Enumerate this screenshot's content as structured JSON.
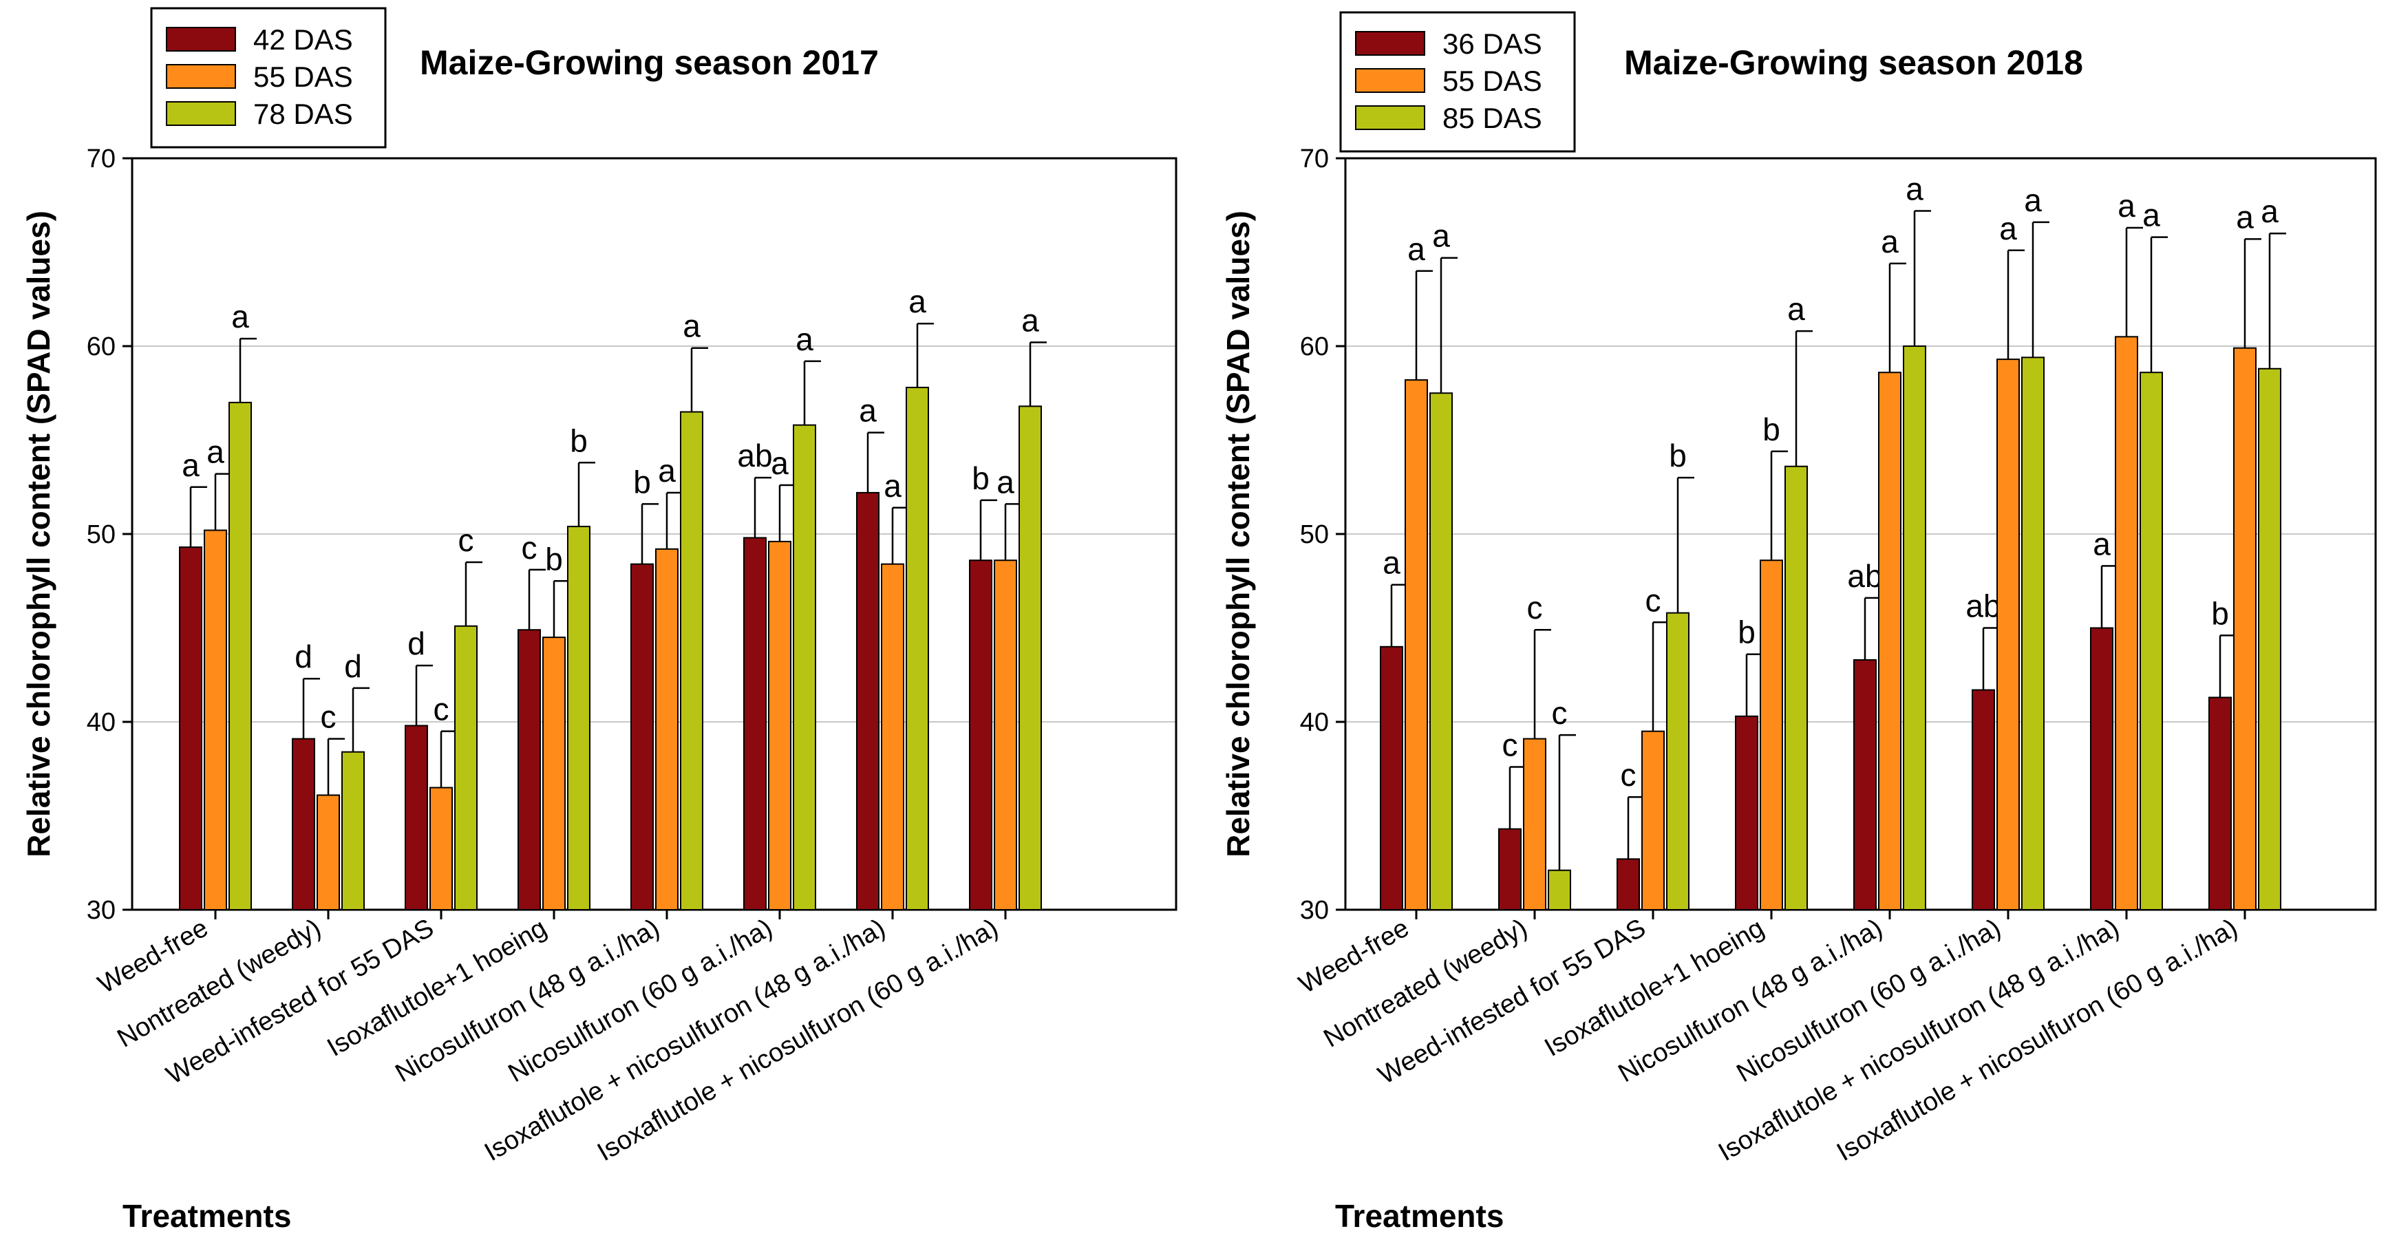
{
  "chart_data": [
    {
      "type": "bar",
      "title": "Maize-Growing season 2017",
      "xlabel": "Treatments",
      "ylabel": "Relative chlorophyll content (SPAD values)",
      "ylim": [
        30,
        70
      ],
      "yticks": [
        "30",
        "40",
        "50",
        "60",
        "70"
      ],
      "grid": true,
      "legend_position": "top-left",
      "categories": [
        "Weed-free",
        "Nontreated (weedy)",
        "Weed-infested for 55 DAS",
        "Isoxaflutole+1 hoeing",
        "Nicosulfuron (48 g a.i./ha)",
        "Nicosulfuron (60 g a.i./ha)",
        "Isoxaflutole + nicosulfuron (48 g a.i./ha)",
        "Isoxaflutole + nicosulfuron (60 g a.i./ha)"
      ],
      "series": [
        {
          "name": "42 DAS",
          "color": "#8b0a0f",
          "values": [
            49.3,
            39.1,
            39.8,
            44.9,
            48.4,
            49.8,
            52.2,
            48.6
          ],
          "errors": [
            3.2,
            3.2,
            3.2,
            3.2,
            3.2,
            3.2,
            3.2,
            3.2
          ],
          "letters": [
            "a",
            "d",
            "d",
            "c",
            "b",
            "ab",
            "a",
            "b"
          ]
        },
        {
          "name": "55 DAS",
          "color": "#ff8c1a",
          "values": [
            50.2,
            36.1,
            36.5,
            44.5,
            49.2,
            49.6,
            48.4,
            48.6
          ],
          "errors": [
            3.0,
            3.0,
            3.0,
            3.0,
            3.0,
            3.0,
            3.0,
            3.0
          ],
          "letters": [
            "a",
            "c",
            "c",
            "b",
            "a",
            "a",
            "a",
            "a"
          ]
        },
        {
          "name": "78 DAS",
          "color": "#b8c414",
          "values": [
            57.0,
            38.4,
            45.1,
            50.4,
            56.5,
            55.8,
            57.8,
            56.8
          ],
          "errors": [
            3.4,
            3.4,
            3.4,
            3.4,
            3.4,
            3.4,
            3.4,
            3.4
          ],
          "letters": [
            "a",
            "d",
            "c",
            "b",
            "a",
            "a",
            "a",
            "a"
          ]
        }
      ]
    },
    {
      "type": "bar",
      "title": "Maize-Growing season 2018",
      "xlabel": "Treatments",
      "ylabel": "Relative chlorophyll content (SPAD values)",
      "ylim": [
        30,
        70
      ],
      "yticks": [
        "30",
        "40",
        "50",
        "60",
        "70"
      ],
      "grid": true,
      "legend_position": "top-left",
      "categories": [
        "Weed-free",
        "Nontreated (weedy)",
        "Weed-infested for 55 DAS",
        "Isoxaflutole+1 hoeing",
        "Nicosulfuron (48 g a.i./ha)",
        "Nicosulfuron (60 g a.i./ha)",
        "Isoxaflutole + nicosulfuron (48 g a.i./ha)",
        "Isoxaflutole + nicosulfuron (60 g a.i./ha)"
      ],
      "series": [
        {
          "name": "36 DAS",
          "color": "#8b0a0f",
          "values": [
            44.0,
            34.3,
            32.7,
            40.3,
            43.3,
            41.7,
            45.0,
            41.3
          ],
          "errors": [
            3.3,
            3.3,
            3.3,
            3.3,
            3.3,
            3.3,
            3.3,
            3.3
          ],
          "letters": [
            "a",
            "c",
            "c",
            "b",
            "ab",
            "ab",
            "a",
            "b"
          ]
        },
        {
          "name": "55 DAS",
          "color": "#ff8c1a",
          "values": [
            58.2,
            39.1,
            39.5,
            48.6,
            58.6,
            59.3,
            60.5,
            59.9
          ],
          "errors": [
            5.8,
            5.8,
            5.8,
            5.8,
            5.8,
            5.8,
            5.8,
            5.8
          ],
          "letters": [
            "a",
            "c",
            "c",
            "b",
            "a",
            "a",
            "a",
            "a"
          ]
        },
        {
          "name": "85 DAS",
          "color": "#b8c414",
          "values": [
            57.5,
            32.1,
            45.8,
            53.6,
            60.0,
            59.4,
            58.6,
            58.8
          ],
          "errors": [
            7.2,
            7.2,
            7.2,
            7.2,
            7.2,
            7.2,
            7.2,
            7.2
          ],
          "letters": [
            "a",
            "c",
            "b",
            "a",
            "a",
            "a",
            "a",
            "a"
          ]
        }
      ]
    }
  ]
}
